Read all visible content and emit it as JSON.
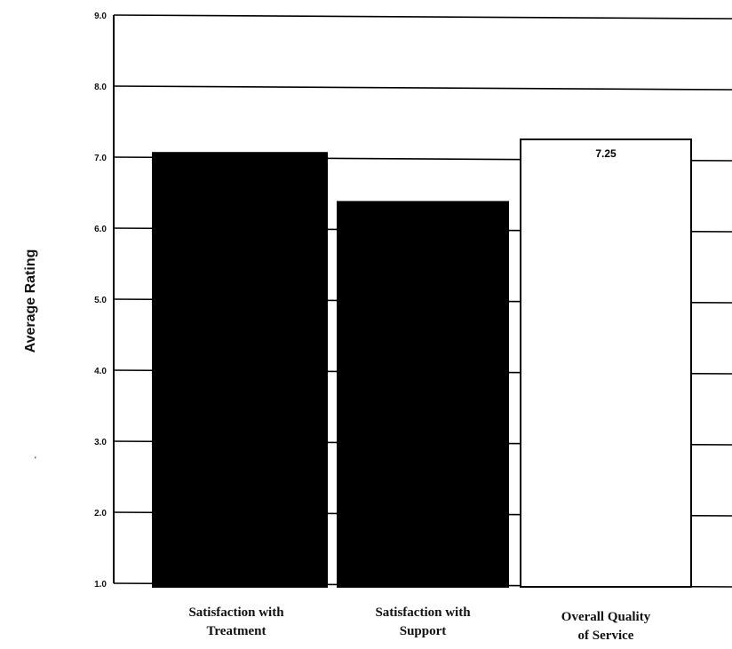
{
  "chart_data": {
    "type": "bar",
    "title": "",
    "xlabel": "",
    "ylabel": "Average Rating",
    "ylim": [
      1.0,
      9.0
    ],
    "yticks": [
      "1.0",
      "2.0",
      "3.0",
      "4.0",
      "5.0",
      "6.0",
      "7.0",
      "8.0",
      "9.0"
    ],
    "categories": [
      [
        "Satisfaction with",
        "Treatment"
      ],
      [
        "Satisfaction with",
        "Support"
      ],
      [
        "Overall Quality",
        "of Service"
      ]
    ],
    "values": [
      7.06,
      6.37,
      7.25
    ],
    "bar_colors": [
      "#000000",
      "#000000",
      "#ffffff"
    ],
    "data_labels": [
      "",
      "",
      "7.25"
    ],
    "grid": true,
    "legend": "none"
  },
  "stray_mark": "‘"
}
